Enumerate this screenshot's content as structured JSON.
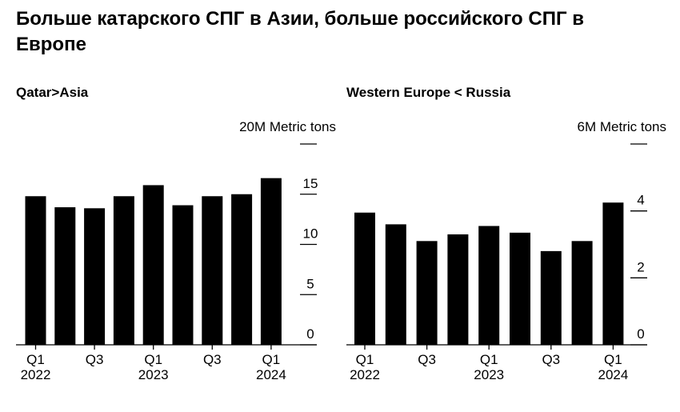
{
  "title": "Больше катарского СПГ в Азии, больше российского СПГ в Европе",
  "chart_data": [
    {
      "type": "bar",
      "title": "Qatar>Asia",
      "unit": "20M Metric tons",
      "ylim": [
        0,
        20
      ],
      "yticks": [
        0,
        5,
        10,
        15,
        20
      ],
      "ytick_labels": [
        "0",
        "5",
        "10",
        "15",
        ""
      ],
      "categories": [
        "Q1 2022",
        "Q2 2022",
        "Q3 2022",
        "Q4 2022",
        "Q1 2023",
        "Q2 2023",
        "Q3 2023",
        "Q4 2023",
        "Q1 2024"
      ],
      "values": [
        14.8,
        13.7,
        13.6,
        14.8,
        15.9,
        13.9,
        14.8,
        15.0,
        16.6
      ],
      "xtick_labels": [
        {
          "index": 0,
          "line1": "Q1",
          "line2": "2022"
        },
        {
          "index": 2,
          "line1": "Q3",
          "line2": ""
        },
        {
          "index": 4,
          "line1": "Q1",
          "line2": "2023"
        },
        {
          "index": 6,
          "line1": "Q3",
          "line2": ""
        },
        {
          "index": 8,
          "line1": "Q1",
          "line2": "2024"
        }
      ],
      "grid": false
    },
    {
      "type": "bar",
      "title": "Western Europe < Russia",
      "unit": "6M Metric tons",
      "ylim": [
        0,
        6
      ],
      "yticks": [
        0,
        2,
        4,
        6
      ],
      "ytick_labels": [
        "0",
        "2",
        "4",
        ""
      ],
      "categories": [
        "Q1 2022",
        "Q2 2022",
        "Q3 2022",
        "Q4 2022",
        "Q1 2023",
        "Q2 2023",
        "Q3 2023",
        "Q4 2023",
        "Q1 2024"
      ],
      "values": [
        3.95,
        3.6,
        3.1,
        3.3,
        3.55,
        3.35,
        2.8,
        3.1,
        4.25
      ],
      "xtick_labels": [
        {
          "index": 0,
          "line1": "Q1",
          "line2": "2022"
        },
        {
          "index": 2,
          "line1": "Q3",
          "line2": ""
        },
        {
          "index": 4,
          "line1": "Q1",
          "line2": "2023"
        },
        {
          "index": 6,
          "line1": "Q3",
          "line2": ""
        },
        {
          "index": 8,
          "line1": "Q1",
          "line2": "2024"
        }
      ],
      "grid": false
    }
  ]
}
